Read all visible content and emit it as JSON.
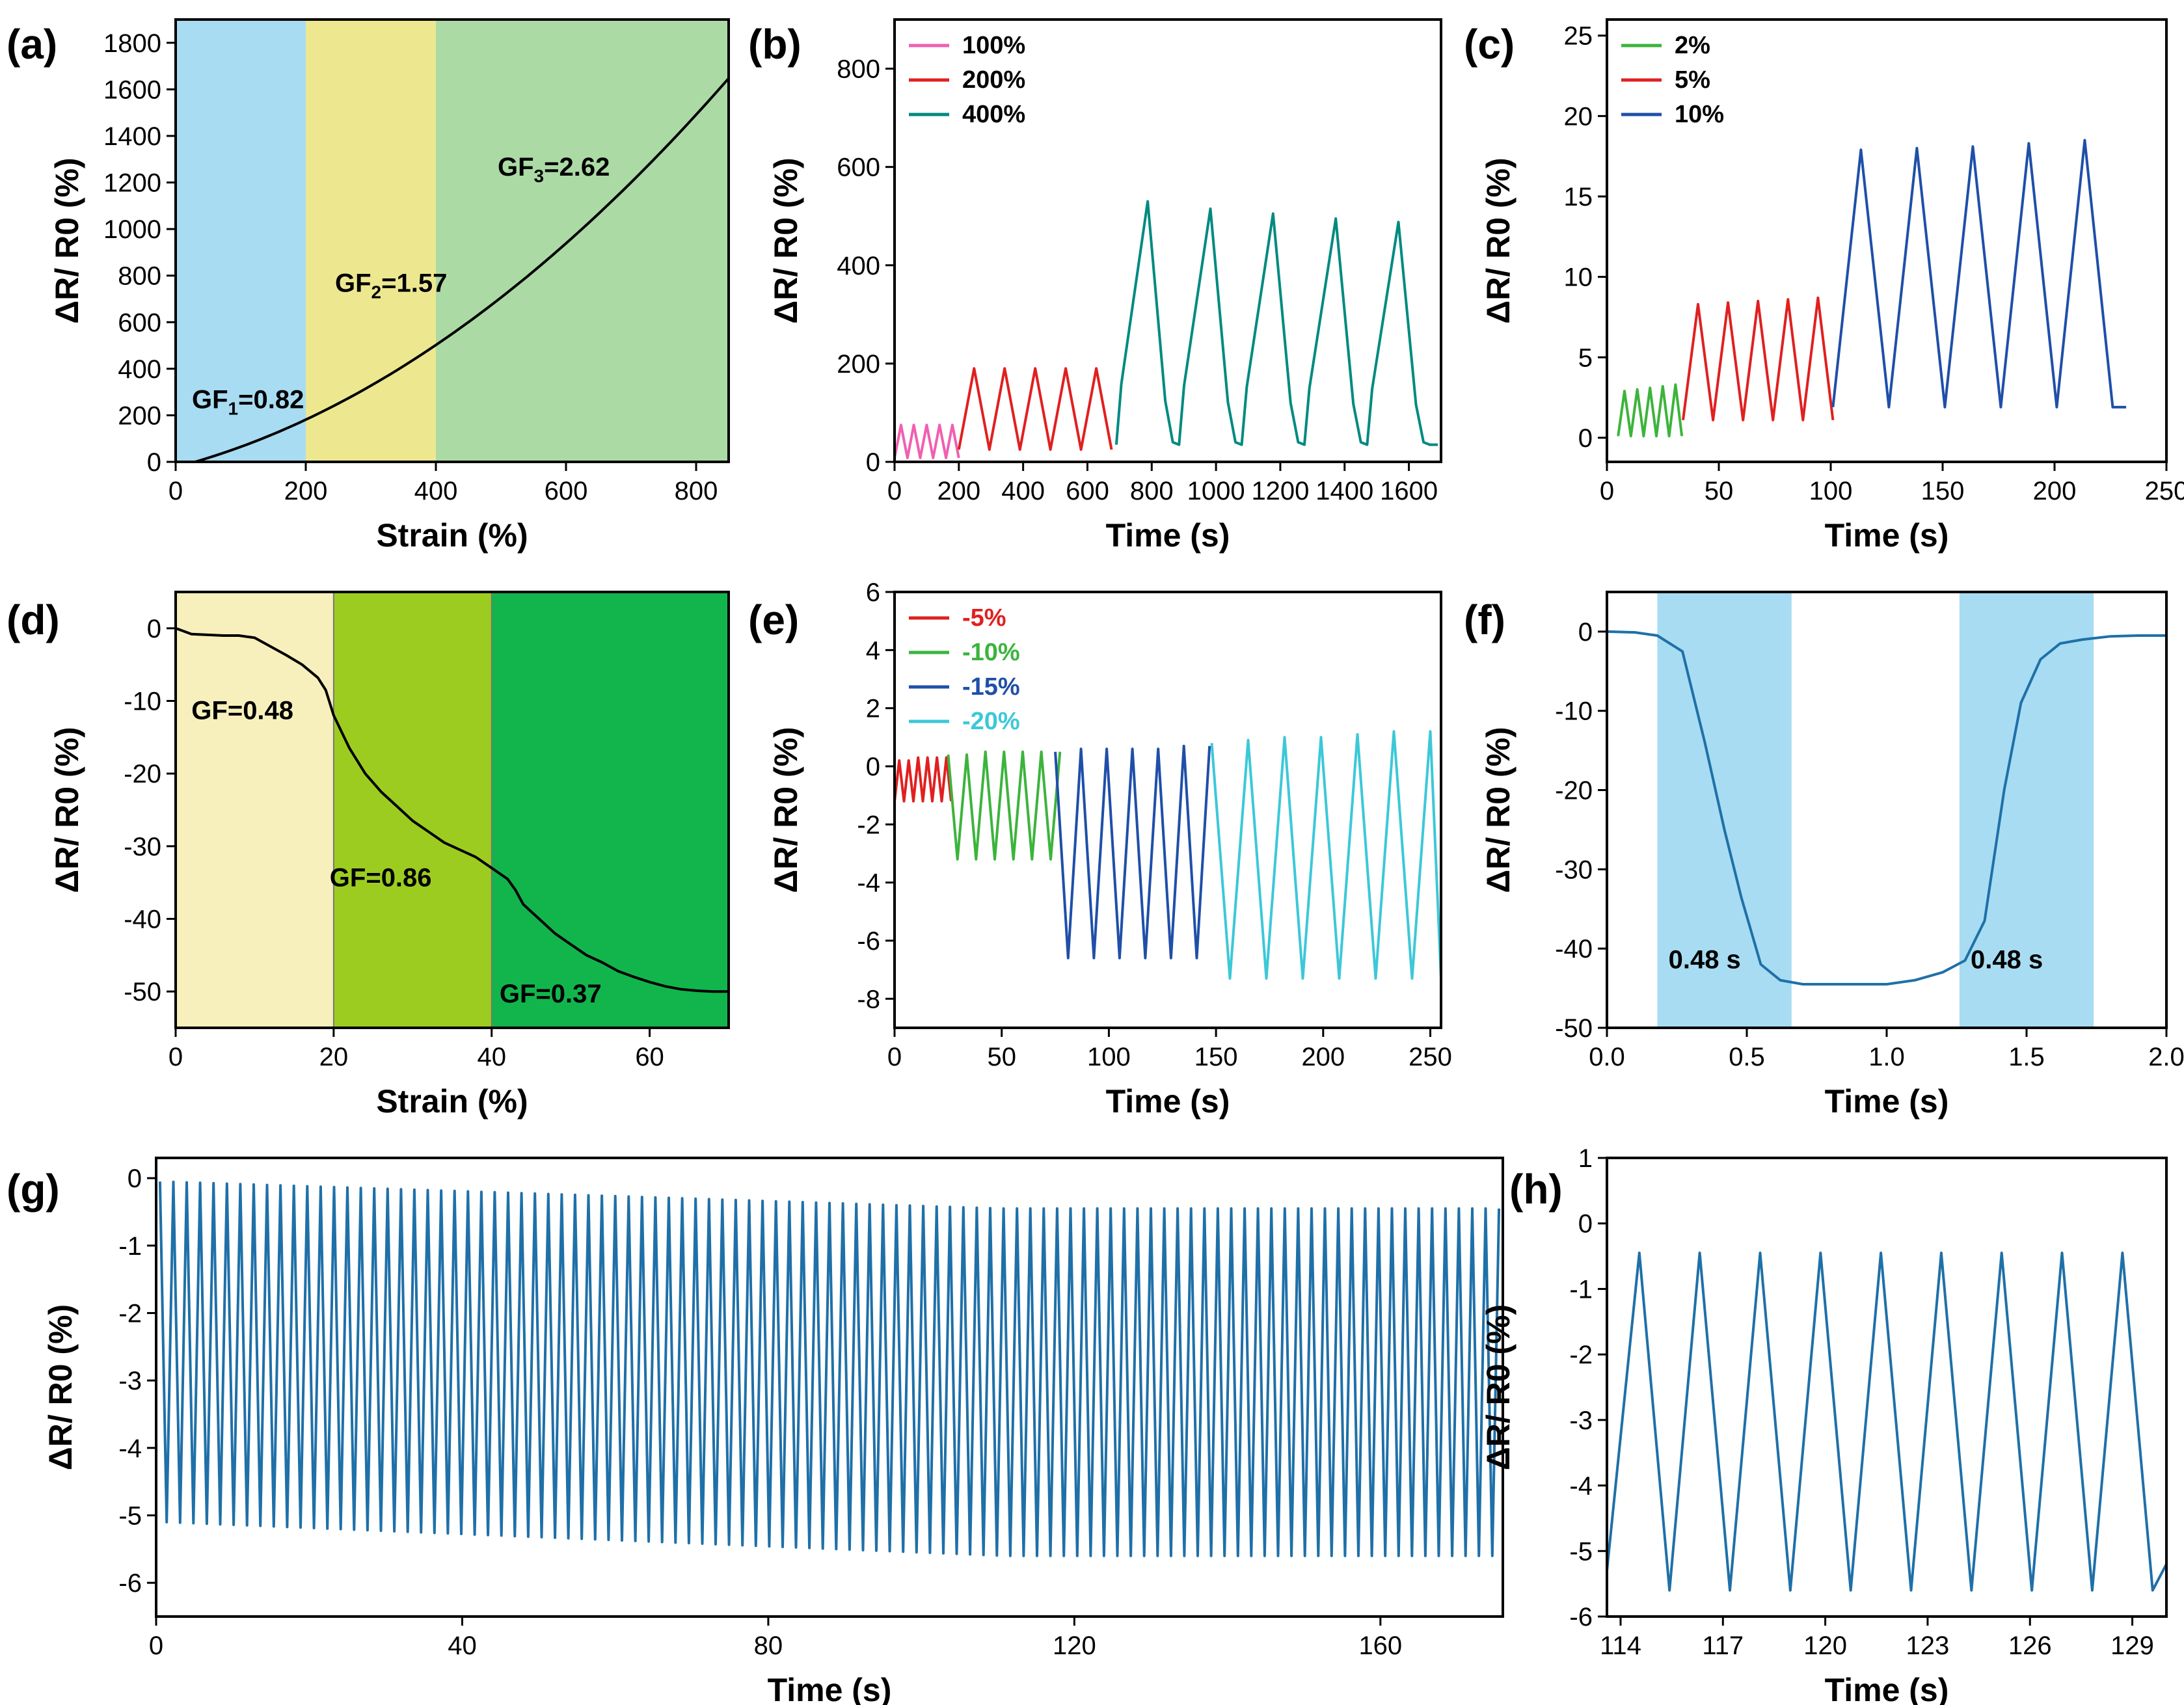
{
  "chart_data": [
    {
      "id": "a",
      "panel_label": "(a)",
      "type": "line",
      "xlabel": "Strain (%)",
      "ylabel": "ΔR/ R0 (%)",
      "xlim": [
        0,
        850
      ],
      "ylim": [
        0,
        1900
      ],
      "xticks": [
        0,
        200,
        400,
        600,
        800
      ],
      "xtick_labels": [
        "0",
        "200",
        "400",
        "600",
        "800"
      ],
      "yticks": [
        0,
        200,
        400,
        600,
        800,
        1000,
        1200,
        1400,
        1600,
        1800
      ],
      "ytick_labels": [
        "0",
        "200",
        "400",
        "600",
        "800",
        "1000",
        "1200",
        "1400",
        "1600",
        "1800"
      ],
      "regions": [
        {
          "x0": 0,
          "x1": 200,
          "color": "#a8dcf2"
        },
        {
          "x0": 200,
          "x1": 400,
          "color": "#ede88f"
        },
        {
          "x0": 400,
          "x1": 850,
          "color": "#acdaa5"
        }
      ],
      "series": [
        {
          "name": "curve",
          "color": "#000000",
          "generator": "curve_a"
        }
      ],
      "annotations": [
        {
          "text": "GF",
          "sub": "1",
          "rest": "=0.82",
          "x": 25,
          "y": 230
        },
        {
          "text": "GF",
          "sub": "2",
          "rest": "=1.57",
          "x": 245,
          "y": 730
        },
        {
          "text": "GF",
          "sub": "3",
          "rest": "=2.62",
          "x": 495,
          "y": 1230
        }
      ]
    },
    {
      "id": "b",
      "panel_label": "(b)",
      "type": "line",
      "xlabel": "Time (s)",
      "ylabel": "ΔR/ R0 (%)",
      "xlim": [
        0,
        1700
      ],
      "ylim": [
        0,
        900
      ],
      "xticks": [
        0,
        200,
        400,
        600,
        800,
        1000,
        1200,
        1400,
        1600
      ],
      "xtick_labels": [
        "0",
        "200",
        "400",
        "600",
        "800",
        "1000",
        "1200",
        "1400",
        "1600"
      ],
      "yticks": [
        0,
        200,
        400,
        600,
        800
      ],
      "ytick_labels": [
        "0",
        "200",
        "400",
        "600",
        "800"
      ],
      "legend": [
        {
          "label": "100%",
          "color": "#f060b0"
        },
        {
          "label": "200%",
          "color": "#e02020"
        },
        {
          "label": "400%",
          "color": "#008a80"
        }
      ],
      "series": [
        {
          "name": "100%",
          "color": "#f060b0",
          "generator": "cycles",
          "t0": 0,
          "period": 40,
          "count": 5,
          "low": 8,
          "peaks": [
            75,
            75,
            75,
            75,
            75
          ],
          "shape": "tri"
        },
        {
          "name": "200%",
          "color": "#e02020",
          "generator": "cycles",
          "t0": 200,
          "period": 95,
          "count": 5,
          "low": 25,
          "peaks": [
            190,
            190,
            190,
            190,
            190
          ],
          "shape": "tri"
        },
        {
          "name": "400%",
          "color": "#008a80",
          "generator": "cycles",
          "t0": 690,
          "period": 195,
          "count": 5,
          "low": 35,
          "peaks": [
            530,
            515,
            505,
            495,
            488
          ],
          "shape": "peak",
          "tail": 1690
        }
      ]
    },
    {
      "id": "c",
      "panel_label": "(c)",
      "type": "line",
      "xlabel": "Time (s)",
      "ylabel": "ΔR/ R0 (%)",
      "xlim": [
        0,
        250
      ],
      "ylim": [
        -1.5,
        26
      ],
      "xticks": [
        0,
        50,
        100,
        150,
        200,
        250
      ],
      "xtick_labels": [
        "0",
        "50",
        "100",
        "150",
        "200",
        "250"
      ],
      "yticks": [
        0,
        5,
        10,
        15,
        20,
        25
      ],
      "ytick_labels": [
        "0",
        "5",
        "10",
        "15",
        "20",
        "25"
      ],
      "legend": [
        {
          "label": "2%",
          "color": "#3cb43c"
        },
        {
          "label": "5%",
          "color": "#e02020"
        },
        {
          "label": "10%",
          "color": "#1f4fa8"
        }
      ],
      "series": [
        {
          "name": "2%",
          "color": "#3cb43c",
          "generator": "cycles",
          "t0": 5,
          "period": 5.7,
          "count": 5,
          "low": 0.1,
          "peaks": [
            2.9,
            3.0,
            3.1,
            3.2,
            3.3
          ],
          "shape": "tri",
          "lead": 0
        },
        {
          "name": "5%",
          "color": "#e02020",
          "generator": "cycles",
          "t0": 34,
          "period": 13.4,
          "count": 5,
          "low": 1.1,
          "peaks": [
            8.3,
            8.4,
            8.5,
            8.6,
            8.7
          ],
          "shape": "tri"
        },
        {
          "name": "10%",
          "color": "#1f4fa8",
          "generator": "cycles",
          "t0": 101,
          "period": 25,
          "count": 5,
          "low": 1.9,
          "peaks": [
            17.9,
            18.0,
            18.1,
            18.3,
            18.5
          ],
          "shape": "tri",
          "tail": 232
        }
      ]
    },
    {
      "id": "d",
      "panel_label": "(d)",
      "type": "line",
      "xlabel": "Strain (%)",
      "ylabel": "ΔR/ R0 (%)",
      "xlim": [
        0,
        70
      ],
      "ylim": [
        -55,
        5
      ],
      "xticks": [
        0,
        20,
        40,
        60
      ],
      "xtick_labels": [
        "0",
        "20",
        "40",
        "60"
      ],
      "yticks": [
        0,
        -10,
        -20,
        -30,
        -40,
        -50
      ],
      "ytick_labels": [
        "0",
        "-10",
        "-20",
        "-30",
        "-40",
        "-50"
      ],
      "regions": [
        {
          "x0": 0,
          "x1": 20,
          "color": "#f8f0bc"
        },
        {
          "x0": 20,
          "x1": 40,
          "color": "#9dcc20"
        },
        {
          "x0": 40,
          "x1": 70,
          "color": "#12b54c"
        }
      ],
      "series": [
        {
          "name": "curve",
          "color": "#000000",
          "generator": "points",
          "x": [
            0,
            2,
            4,
            6,
            8,
            10,
            12,
            14,
            16,
            18,
            19,
            20,
            22,
            24,
            26,
            28,
            30,
            32,
            34,
            36,
            38,
            40,
            42,
            43,
            44,
            46,
            48,
            50,
            52,
            54,
            56,
            58,
            60,
            62,
            64,
            66,
            68,
            70
          ],
          "y": [
            0,
            -0.8,
            -0.9,
            -1.0,
            -1.0,
            -1.3,
            -2.5,
            -3.7,
            -5.0,
            -6.8,
            -8.5,
            -12.0,
            -16.5,
            -20.0,
            -22.5,
            -24.5,
            -26.5,
            -28.0,
            -29.5,
            -30.5,
            -31.5,
            -33.0,
            -34.5,
            -36.0,
            -38.0,
            -40.0,
            -42.0,
            -43.5,
            -45.0,
            -46.0,
            -47.2,
            -48.0,
            -48.7,
            -49.3,
            -49.7,
            -49.9,
            -50.0,
            -50.0
          ]
        }
      ],
      "annotations": [
        {
          "text": "GF=0.48",
          "x": 2,
          "y": -12.5
        },
        {
          "text": "GF=0.86",
          "x": 19.5,
          "y": -35.5
        },
        {
          "text": "GF=0.37",
          "x": 41,
          "y": -51.5
        }
      ]
    },
    {
      "id": "e",
      "panel_label": "(e)",
      "type": "line",
      "xlabel": "Time (s)",
      "ylabel": "ΔR/ R0 (%)",
      "xlim": [
        0,
        255
      ],
      "ylim": [
        -9,
        6
      ],
      "xticks": [
        0,
        50,
        100,
        150,
        200,
        250
      ],
      "xtick_labels": [
        "0",
        "50",
        "100",
        "150",
        "200",
        "250"
      ],
      "yticks": [
        6,
        4,
        2,
        0,
        -2,
        -4,
        -6,
        -8
      ],
      "ytick_labels": [
        "6",
        "4",
        "2",
        "0",
        "-2",
        "-4",
        "-6",
        "-8"
      ],
      "legend": [
        {
          "label": "-5%",
          "color": "#e02020"
        },
        {
          "label": "-10%",
          "color": "#3cb43c"
        },
        {
          "label": "-15%",
          "color": "#1f4fa8"
        },
        {
          "label": "-20%",
          "color": "#3cc8d8"
        }
      ],
      "series": [
        {
          "name": "-5%",
          "color": "#e02020",
          "generator": "cycles",
          "t0": 0,
          "period": 4.4,
          "count": 6,
          "low": -1.2,
          "peaks": [
            0.2,
            0.2,
            0.3,
            0.3,
            0.3,
            0.3
          ],
          "shape": "tri"
        },
        {
          "name": "-10%",
          "color": "#3cb43c",
          "generator": "cycles",
          "t0": 25,
          "period": 8.7,
          "count": 6,
          "low": -3.2,
          "peaks": [
            0.4,
            0.4,
            0.5,
            0.5,
            0.5,
            0.5
          ],
          "shape": "tri",
          "invert": true
        },
        {
          "name": "-15%",
          "color": "#1f4fa8",
          "generator": "cycles",
          "t0": 75,
          "period": 12.0,
          "count": 6,
          "low": -6.6,
          "peaks": [
            0.5,
            0.6,
            0.6,
            0.6,
            0.6,
            0.7
          ],
          "shape": "tri",
          "invert": true
        },
        {
          "name": "-20%",
          "color": "#3cc8d8",
          "generator": "cycles",
          "t0": 148,
          "period": 17.0,
          "count": 6,
          "low": -7.3,
          "peaks": [
            0.8,
            0.9,
            1.0,
            1.0,
            1.1,
            1.2
          ],
          "shape": "tri",
          "invert": true,
          "tail": 255
        }
      ]
    },
    {
      "id": "f",
      "panel_label": "(f)",
      "type": "line",
      "xlabel": "Time (s)",
      "ylabel": "ΔR/ R0 (%)",
      "xlim": [
        0,
        2.0
      ],
      "ylim": [
        -50,
        5
      ],
      "xticks": [
        0,
        0.5,
        1.0,
        1.5,
        2.0
      ],
      "xtick_labels": [
        "0.0",
        "0.5",
        "1.0",
        "1.5",
        "2.0"
      ],
      "yticks": [
        0,
        -10,
        -20,
        -30,
        -40,
        -50
      ],
      "ytick_labels": [
        "0",
        "-10",
        "-20",
        "-30",
        "-40",
        "-50"
      ],
      "regions": [
        {
          "x0": 0.18,
          "x1": 0.66,
          "color": "#a8dcf2"
        },
        {
          "x0": 1.26,
          "x1": 1.74,
          "color": "#a8dcf2"
        }
      ],
      "series": [
        {
          "name": "response",
          "color": "#1f70a8",
          "generator": "points",
          "x": [
            0,
            0.1,
            0.18,
            0.27,
            0.35,
            0.42,
            0.48,
            0.55,
            0.62,
            0.7,
            0.8,
            0.9,
            1.0,
            1.1,
            1.2,
            1.28,
            1.35,
            1.42,
            1.48,
            1.55,
            1.62,
            1.7,
            1.8,
            1.9,
            2.0
          ],
          "y": [
            0,
            -0.1,
            -0.5,
            -2.5,
            -14,
            -25,
            -33.5,
            -42,
            -44,
            -44.5,
            -44.5,
            -44.5,
            -44.5,
            -44,
            -43,
            -41.5,
            -36.5,
            -20,
            -9,
            -3.5,
            -1.5,
            -1.0,
            -0.6,
            -0.5,
            -0.5
          ]
        }
      ],
      "annotations": [
        {
          "text": "0.48 s",
          "x": 0.22,
          "y": -42.5
        },
        {
          "text": "0.48 s",
          "x": 1.3,
          "y": -42.5
        }
      ]
    },
    {
      "id": "g",
      "panel_label": "(g)",
      "type": "line",
      "xlabel": "Time (s)",
      "ylabel": "ΔR/ R0 (%)",
      "ylabel_subscript": true,
      "xlim": [
        0,
        176
      ],
      "ylim": [
        -6.5,
        0.3
      ],
      "xticks": [
        0,
        40,
        80,
        120,
        160
      ],
      "xtick_labels": [
        "0",
        "40",
        "80",
        "120",
        "160"
      ],
      "yticks": [
        0,
        -1,
        -2,
        -3,
        -4,
        -5,
        -6
      ],
      "ytick_labels": [
        "0",
        "-1",
        "-2",
        "-3",
        "-4",
        "-5",
        "-6"
      ],
      "series": [
        {
          "name": "cycling",
          "color": "#1f70a8",
          "generator": "dense",
          "t0": 0.5,
          "t1": 176,
          "period": 1.75,
          "peak_start": -0.05,
          "peak_end": -0.45,
          "low_start": -5.1,
          "low_end": -5.6
        }
      ]
    },
    {
      "id": "h",
      "panel_label": "(h)",
      "type": "line",
      "xlabel": "Time (s)",
      "ylabel": "ΔR/ R0 (%)",
      "ylabel_subscript": true,
      "xlim": [
        113.6,
        130
      ],
      "ylim": [
        -6,
        1
      ],
      "xticks": [
        114,
        117,
        120,
        123,
        126,
        129
      ],
      "xtick_labels": [
        "114",
        "117",
        "120",
        "123",
        "126",
        "129"
      ],
      "yticks": [
        1,
        0,
        -1,
        -2,
        -3,
        -4,
        -5,
        -6
      ],
      "ytick_labels": [
        "1",
        "0",
        "-1",
        "-2",
        "-3",
        "-4",
        "-5",
        "-6"
      ],
      "series": [
        {
          "name": "zoom",
          "color": "#1f70a8",
          "generator": "zigzag",
          "t0": 113.6,
          "t1": 130,
          "period": 1.77,
          "first_peak": 114.55,
          "peak": -0.45,
          "low": -5.6
        }
      ]
    }
  ]
}
